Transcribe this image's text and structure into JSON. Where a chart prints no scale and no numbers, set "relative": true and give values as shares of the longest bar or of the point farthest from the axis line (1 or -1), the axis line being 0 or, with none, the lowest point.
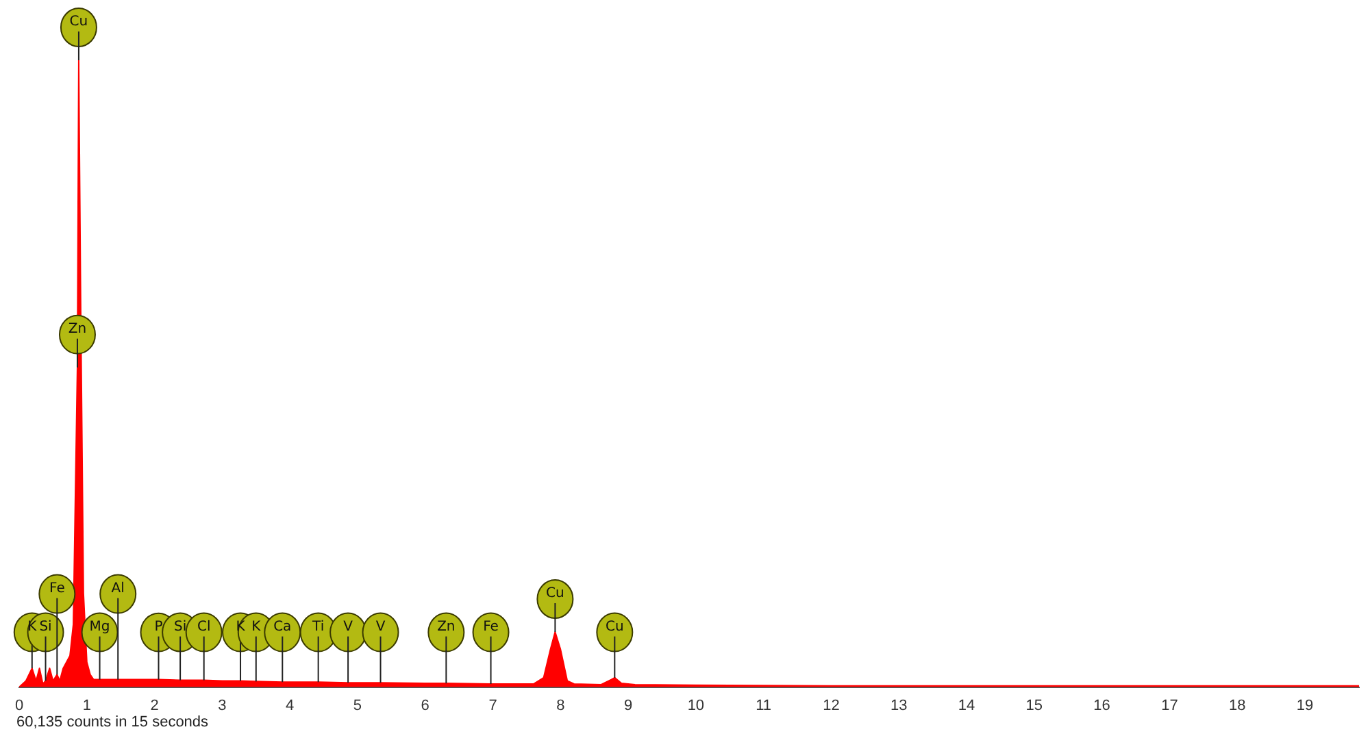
{
  "chart_data": {
    "type": "area",
    "relative": true,
    "x": [
      0,
      0.1,
      0.19,
      0.25,
      0.3,
      0.35,
      0.39,
      0.45,
      0.5,
      0.56,
      0.6,
      0.65,
      0.7,
      0.75,
      0.8,
      0.86,
      0.88,
      0.91,
      0.95,
      1.0,
      1.05,
      1.1,
      1.19,
      1.46,
      1.5,
      2,
      2.06,
      2.38,
      2.5,
      2.73,
      3,
      3.27,
      3.5,
      3.89,
      4,
      4.42,
      4.86,
      5,
      5.34,
      6,
      6.31,
      6.97,
      7,
      7.6,
      7.75,
      7.85,
      7.92,
      8.0,
      8.1,
      8.2,
      8.6,
      8.75,
      8.8,
      8.9,
      9.1,
      10,
      12,
      15,
      19.8
    ],
    "series": [
      {
        "color": "#ff0000",
        "values": [
          0,
          0.01,
          0.03,
          0.01,
          0.03,
          0.005,
          0.01,
          0.03,
          0.01,
          0.02,
          0.01,
          0.03,
          0.04,
          0.05,
          0.1,
          0.51,
          1,
          0.6,
          0.15,
          0.04,
          0.02,
          0.012,
          0.012,
          0.012,
          0.012,
          0.012,
          0.012,
          0.011,
          0.011,
          0.011,
          0.01,
          0.01,
          0.009,
          0.008,
          0.008,
          0.008,
          0.007,
          0.007,
          0.007,
          0.006,
          0.006,
          0.005,
          0.005,
          0.005,
          0.015,
          0.06,
          0.088,
          0.06,
          0.01,
          0.005,
          0.004,
          0.012,
          0.015,
          0.006,
          0.004,
          0.003,
          0.002,
          0.002,
          0.002
        ]
      }
    ],
    "xlim": [
      0,
      19.8
    ],
    "xticks": [
      0,
      1,
      2,
      3,
      4,
      5,
      6,
      7,
      8,
      9,
      10,
      11,
      12,
      13,
      14,
      15,
      16,
      17,
      18,
      19
    ],
    "grid": false,
    "legend": false,
    "marker": "none",
    "annotations": [
      {
        "text": "K",
        "x": 0.19,
        "y": 0.03
      },
      {
        "text": "Si",
        "x": 0.39,
        "y": 0.01
      },
      {
        "text": "Fe",
        "x": 0.56,
        "y": 0.02
      },
      {
        "text": "Mg",
        "x": 1.19,
        "y": 0.012
      },
      {
        "text": "Al",
        "x": 1.46,
        "y": 0.012
      },
      {
        "text": "P",
        "x": 2.06,
        "y": 0.012
      },
      {
        "text": "Si",
        "x": 2.38,
        "y": 0.011
      },
      {
        "text": "Cl",
        "x": 2.73,
        "y": 0.011
      },
      {
        "text": "K",
        "x": 3.27,
        "y": 0.01
      },
      {
        "text": "K",
        "x": 3.5,
        "y": 0.009
      },
      {
        "text": "Ca",
        "x": 3.89,
        "y": 0.008
      },
      {
        "text": "Ti",
        "x": 4.42,
        "y": 0.008
      },
      {
        "text": "V",
        "x": 4.86,
        "y": 0.007
      },
      {
        "text": "V",
        "x": 5.34,
        "y": 0.007
      },
      {
        "text": "Zn",
        "x": 6.31,
        "y": 0.006
      },
      {
        "text": "Fe",
        "x": 6.97,
        "y": 0.005
      },
      {
        "text": "Cu",
        "x": 7.92,
        "y": 0.088
      },
      {
        "text": "Cu",
        "x": 8.8,
        "y": 0.015
      },
      {
        "text": "Zn",
        "x": 0.86,
        "y": 0.51
      },
      {
        "text": "Cu",
        "x": 0.88,
        "y": 1
      },
      "60,135 counts in 15 seconds"
    ]
  }
}
